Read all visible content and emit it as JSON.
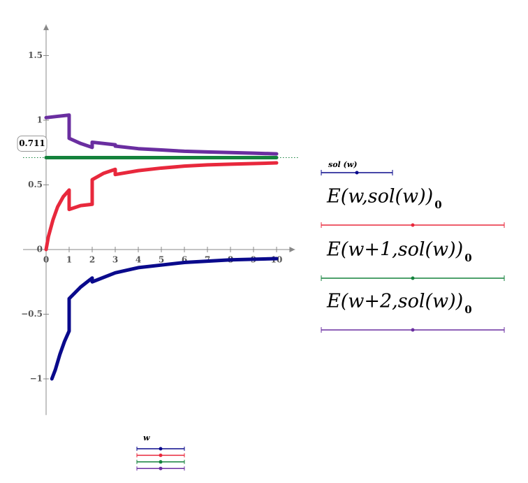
{
  "chart_data": {
    "type": "line",
    "x_label": "w",
    "xlim": [
      -1,
      10.8
    ],
    "ylim": [
      -1.28,
      1.74
    ],
    "xticks": [
      0,
      1,
      2,
      3,
      4,
      5,
      6,
      7,
      8,
      9,
      10
    ],
    "yticks": [
      {
        "value": -1,
        "label": "−1"
      },
      {
        "value": -0.5,
        "label": "−0.5"
      },
      0,
      0.5,
      1,
      1.5
    ],
    "marker": 0.711,
    "series": [
      {
        "name": "sol (w)",
        "color": "#0a0a8c",
        "x": [
          0.25,
          0.4,
          0.6,
          0.8,
          1,
          1,
          1.5,
          2,
          2,
          3,
          4,
          5,
          6,
          7,
          8,
          9,
          10
        ],
        "values": [
          -1,
          -0.93,
          -0.81,
          -0.71,
          -0.63,
          -0.38,
          -0.29,
          -0.22,
          -0.25,
          -0.18,
          -0.14,
          -0.12,
          -0.1,
          -0.09,
          -0.08,
          -0.075,
          -0.07
        ]
      },
      {
        "name": "E(w,sol(w))",
        "subscript": "0",
        "color": "#e8283c",
        "x": [
          0,
          0.1,
          0.3,
          0.5,
          0.75,
          1,
          1,
          1.5,
          2,
          2,
          2.5,
          3,
          3,
          4,
          5,
          6,
          7,
          8,
          9,
          10
        ],
        "values": [
          0,
          0.1,
          0.23,
          0.33,
          0.41,
          0.46,
          0.31,
          0.34,
          0.35,
          0.54,
          0.59,
          0.62,
          0.58,
          0.61,
          0.63,
          0.645,
          0.655,
          0.66,
          0.665,
          0.67
        ]
      },
      {
        "name": "E(w+1,sol(w))",
        "subscript": "0",
        "color": "#14823c",
        "x": [
          0,
          10
        ],
        "values": [
          0.711,
          0.711
        ]
      },
      {
        "name": "E(w+2,sol(w))",
        "subscript": "0",
        "color": "#6a2ea0",
        "x": [
          0,
          0.5,
          1,
          1,
          1.5,
          2,
          2,
          3,
          3,
          4,
          5,
          6,
          7,
          8,
          9,
          10
        ],
        "values": [
          1.02,
          1.03,
          1.04,
          0.86,
          0.82,
          0.79,
          0.83,
          0.81,
          0.8,
          0.78,
          0.77,
          0.76,
          0.755,
          0.75,
          0.745,
          0.74
        ]
      }
    ]
  }
}
